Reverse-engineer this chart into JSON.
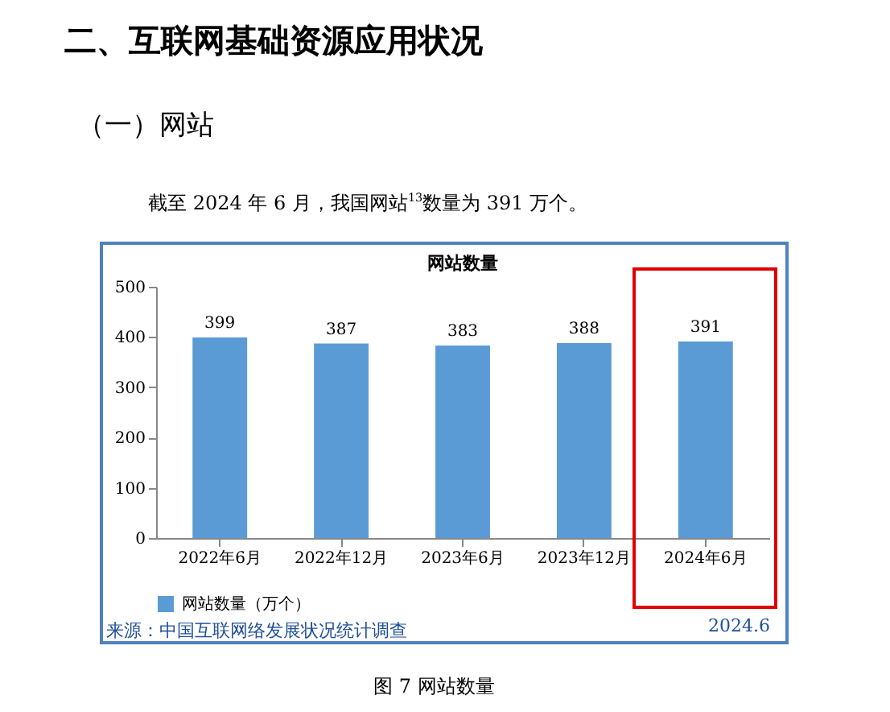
{
  "chart_data": {
    "type": "bar",
    "title": "网站数量",
    "categories": [
      "2022年6月",
      "2022年12月",
      "2023年6月",
      "2023年12月",
      "2024年6月"
    ],
    "series": [
      {
        "name": "网站数量（万个）",
        "color": "#5b9bd5",
        "values": [
          399,
          387,
          383,
          388,
          391
        ]
      }
    ],
    "ylim": [
      0,
      500
    ],
    "yticks": [
      0,
      100,
      200,
      300,
      400,
      500
    ],
    "grid": false,
    "legend": "bottom",
    "data_labels": true,
    "annotations": [
      "二、互联网基础资源应用状况",
      "（一）网站",
      "截至 2024 年 6 月，我国网站$^{13}$数量为 391 万个。",
      "来源：中国互联网络发展状况统计调查",
      "2024.6",
      "图 7 网站数量"
    ]
  }
}
